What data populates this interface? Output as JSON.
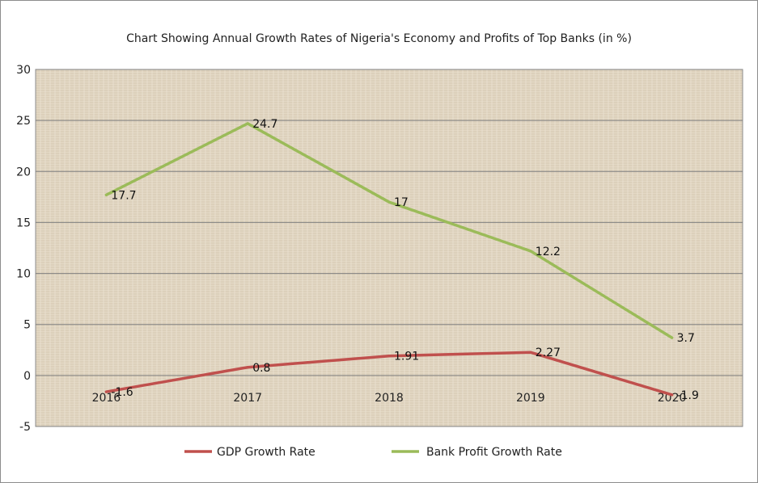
{
  "chart_data": {
    "type": "line",
    "title": "Chart Showing Annual Growth Rates of Nigeria's Economy and  Profits of Top Banks  (in %)",
    "categories": [
      "2016",
      "2017",
      "2018",
      "2019",
      "2020"
    ],
    "ylim": [
      -5,
      30
    ],
    "yticks": [
      -5,
      0,
      5,
      10,
      15,
      20,
      25,
      30
    ],
    "grid": true,
    "legend_position": "bottom",
    "series": [
      {
        "name": "GDP Growth Rate",
        "color": "#c0504d",
        "values": [
          -1.6,
          0.8,
          1.91,
          2.27,
          -1.9
        ],
        "labels": [
          "-1.6",
          "0.8",
          "1.91",
          "2.27",
          "-1.9"
        ]
      },
      {
        "name": "Bank Profit Growth Rate",
        "color": "#9bbb59",
        "values": [
          17.7,
          24.7,
          17,
          12.2,
          3.7
        ],
        "labels": [
          "17.7",
          "24.7",
          "17",
          "12.2",
          "3.7"
        ]
      }
    ],
    "plot_background": "#e6dccb",
    "gridline_color": "#7f7f7f"
  }
}
